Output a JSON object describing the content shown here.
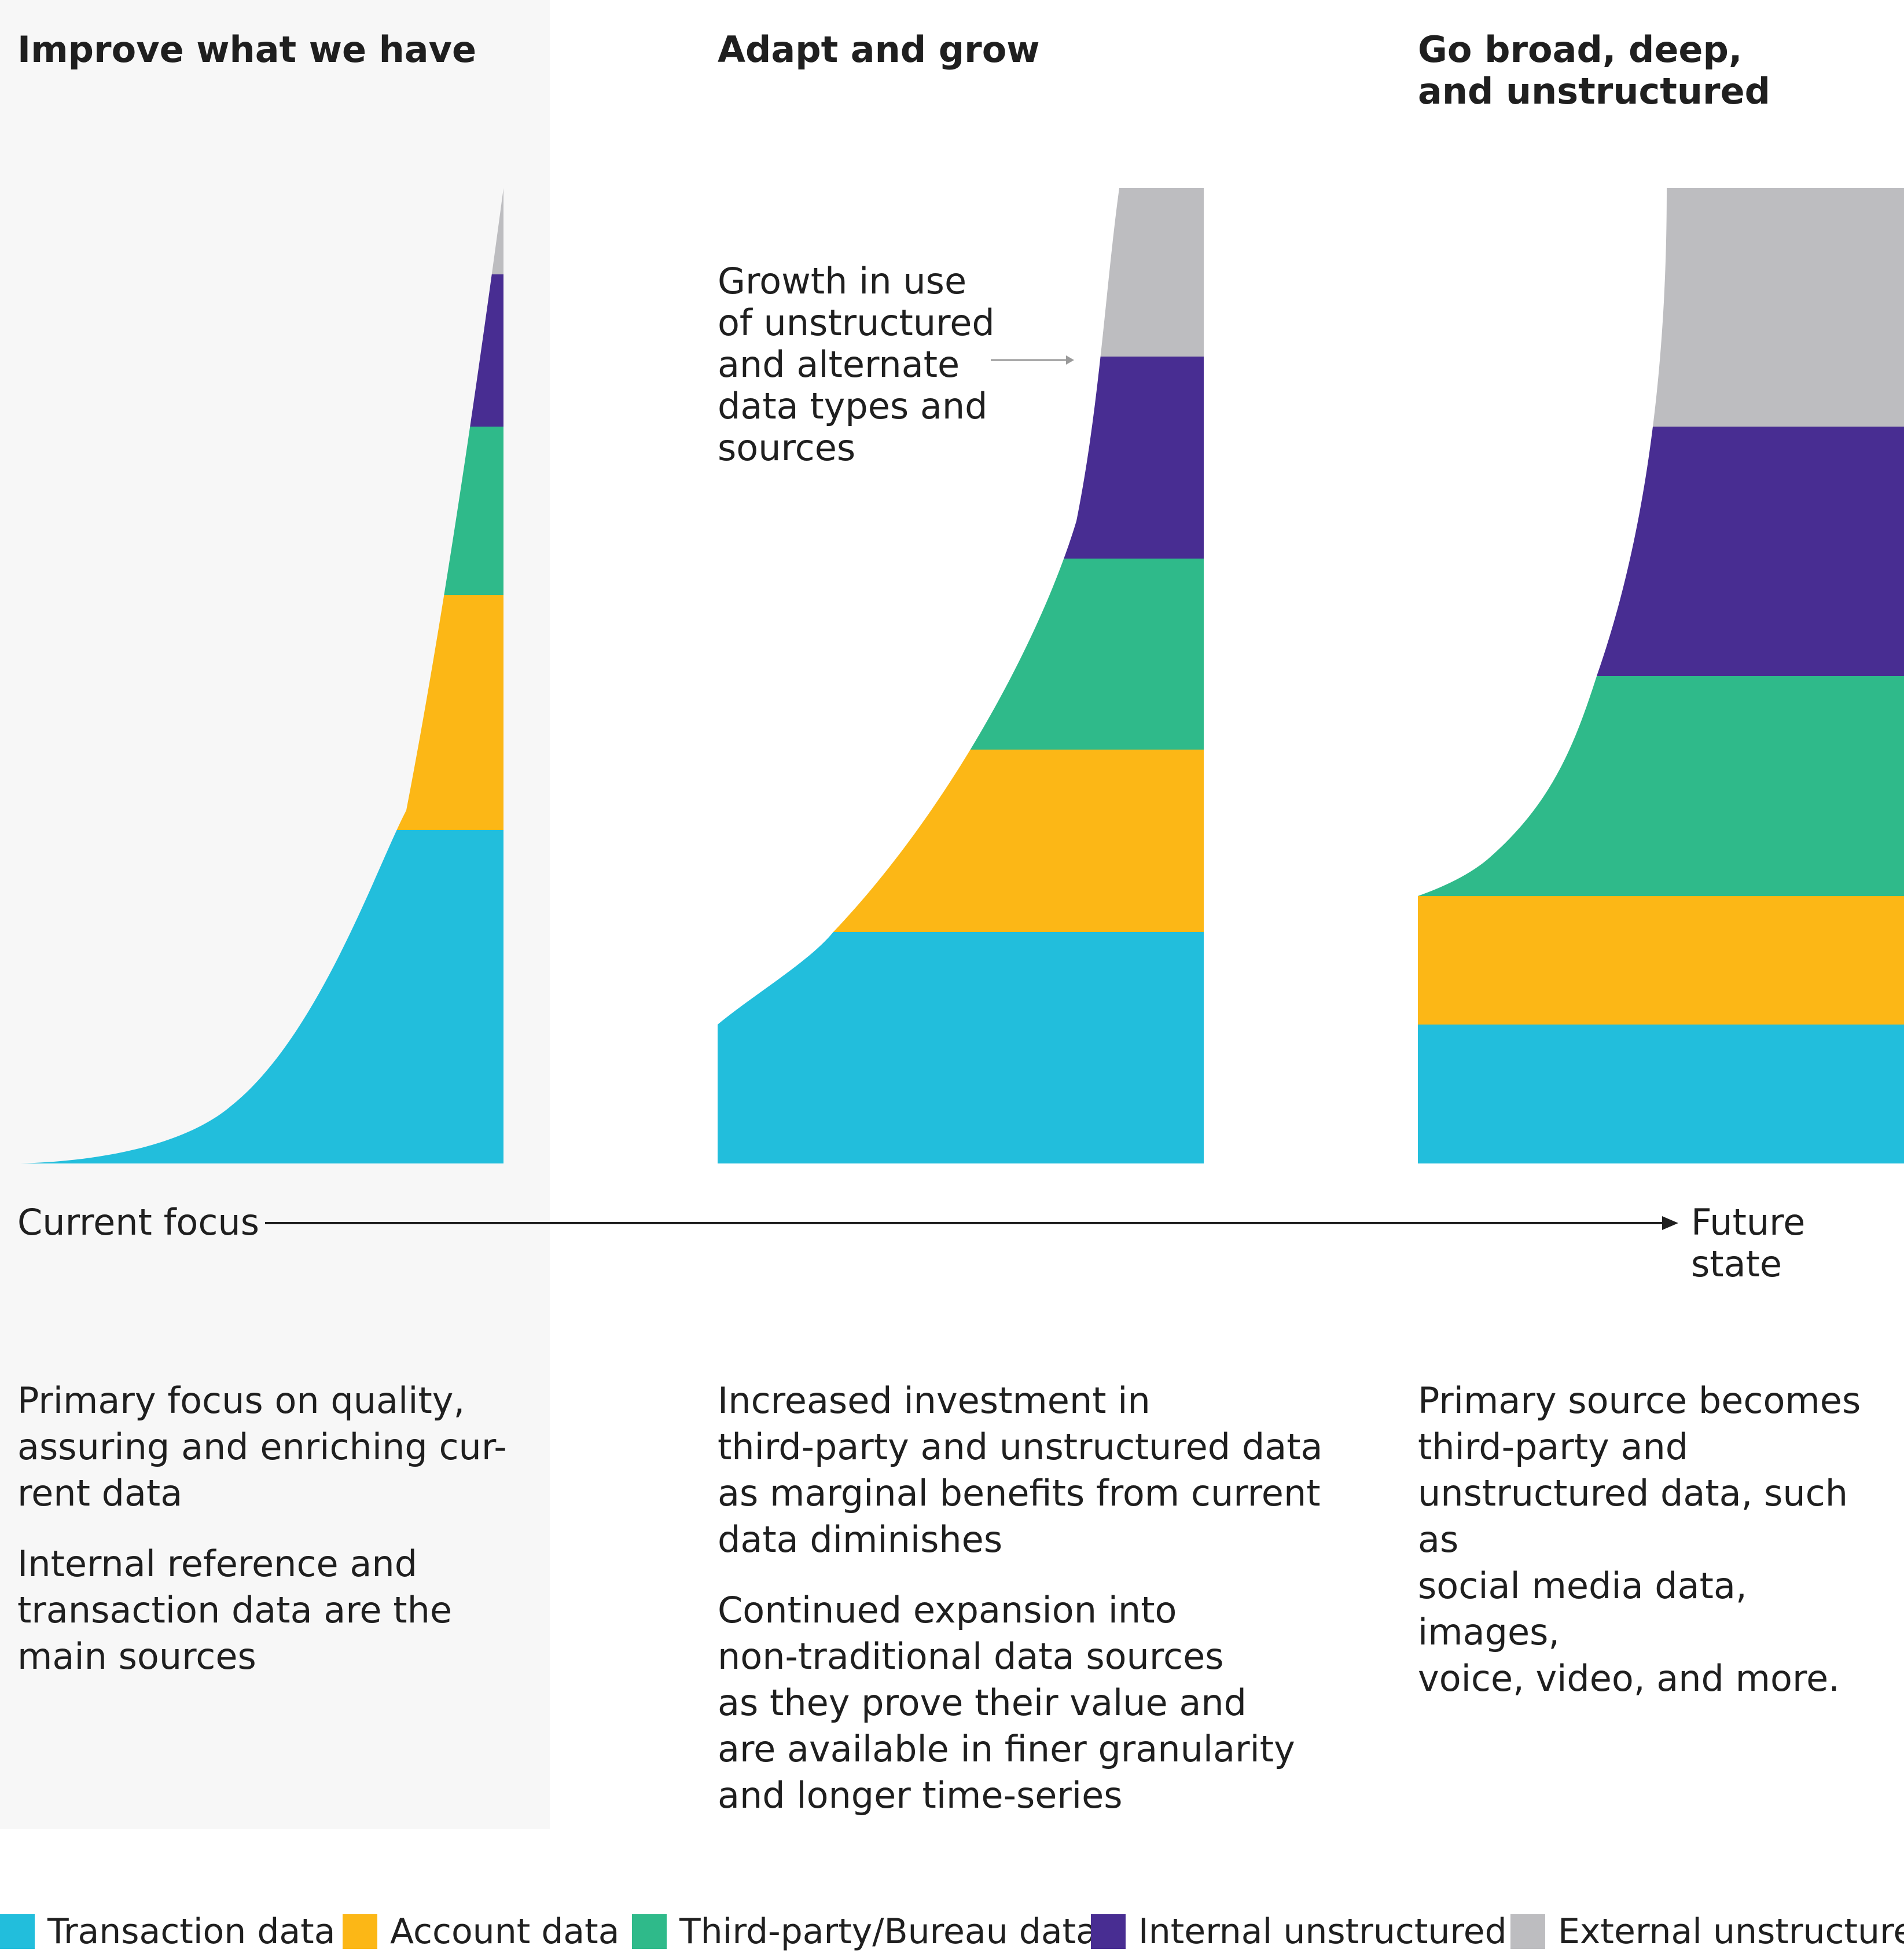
{
  "stages": [
    {
      "title": "Improve what we have"
    },
    {
      "title": "Adapt and grow"
    },
    {
      "title": "Go broad, deep,\nand unstructured"
    }
  ],
  "axis": {
    "start_label": "Current focus",
    "end_label": "Future state"
  },
  "annotation": {
    "text": "Growth in use\nof unstructured\nand alternate\ndata types and\nsources"
  },
  "descriptions": [
    {
      "paragraphs": [
        "Primary focus on quality,\nassuring and enriching cur-\nrent data",
        "Internal reference and\ntransaction data are the\nmain sources"
      ]
    },
    {
      "paragraphs": [
        "Increased investment in\nthird-party and unstructured data\nas marginal benefits from current\ndata diminishes",
        "Continued expansion into\nnon-traditional data sources\nas they prove their value and\nare available in finer granularity\nand longer time-series"
      ]
    },
    {
      "paragraphs": [
        "Primary source becomes\nthird-party and\nunstructured data, such as\nsocial media data, images,\nvoice, video, and more."
      ]
    }
  ],
  "legend": [
    {
      "label": "Transaction data",
      "color": "#22bedc"
    },
    {
      "label": "Account data",
      "color": "#fcb716"
    },
    {
      "label": "Third-party/Bureau data",
      "color": "#2fba8a"
    },
    {
      "label": "Internal unstructured",
      "color": "#482d92"
    },
    {
      "label": "External unstructured",
      "color": "#bdbdc0"
    }
  ],
  "colors": {
    "background_highlight": "#f7f7f7",
    "text": "#1f1f1f",
    "arrow": "#1f1f1f"
  }
}
